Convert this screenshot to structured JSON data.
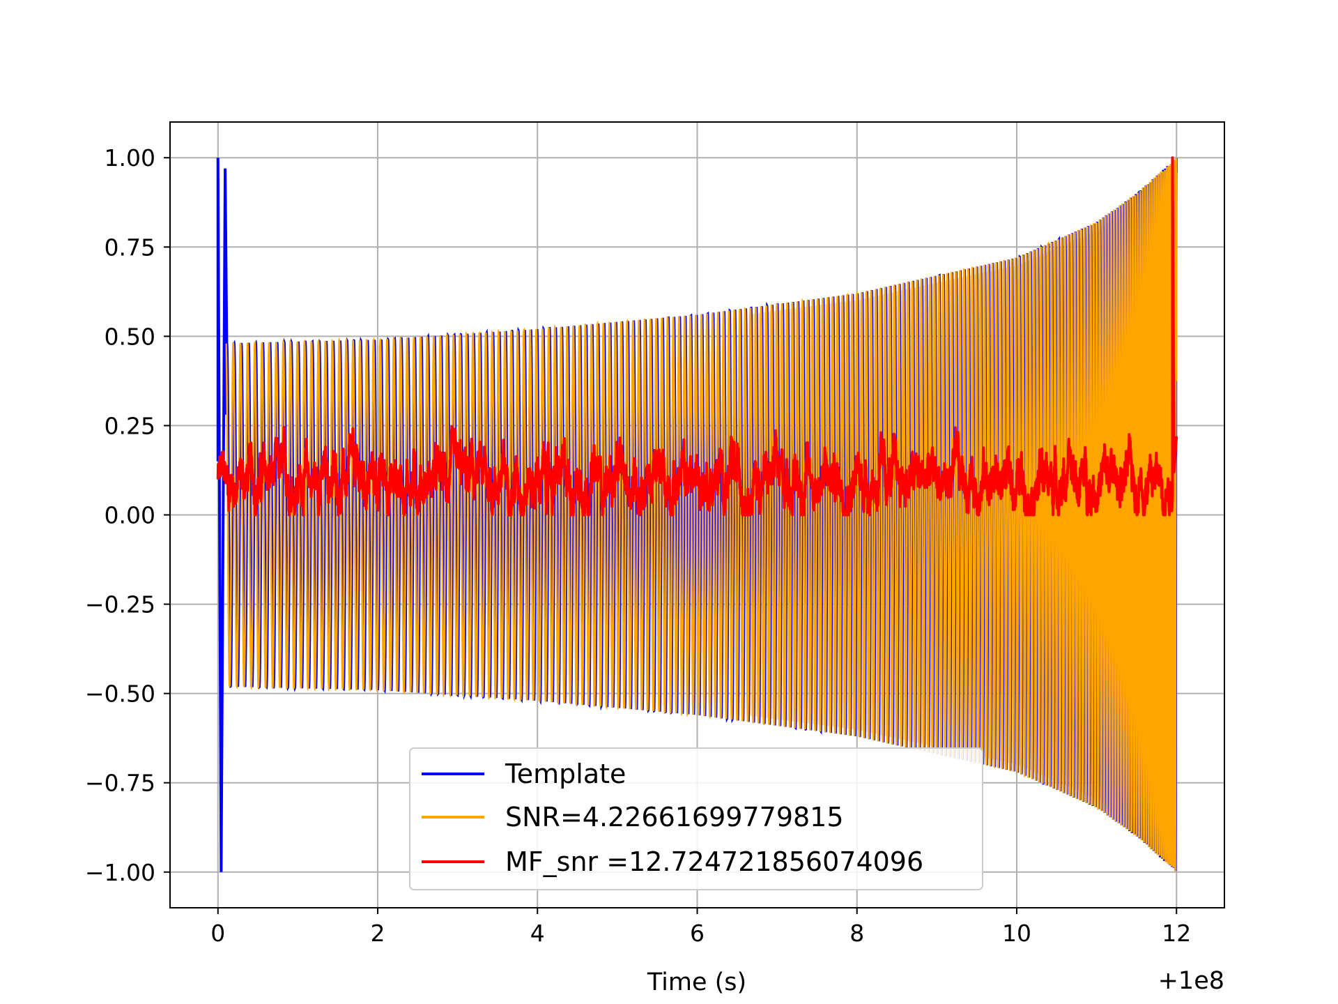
{
  "chart_data": {
    "type": "line",
    "title": "",
    "xlabel": "Time (s)",
    "ylabel": "",
    "x_offset_label": "+1e8",
    "xlim": [
      -0.6,
      12.6
    ],
    "ylim": [
      -1.1,
      1.1
    ],
    "x_ticks": [
      0,
      2,
      4,
      6,
      8,
      10,
      12
    ],
    "x_tick_labels": [
      "0",
      "2",
      "4",
      "6",
      "8",
      "10",
      "12"
    ],
    "y_ticks": [
      1.0,
      0.75,
      0.5,
      0.25,
      0.0,
      -0.25,
      -0.5,
      -0.75,
      -1.0
    ],
    "y_tick_labels": [
      "1.00",
      "0.75",
      "0.50",
      "0.25",
      "0.00",
      "−0.25",
      "−0.50",
      "−0.75",
      "−1.00"
    ],
    "grid": true,
    "legend_position": "lower-center",
    "series": [
      {
        "name": "Template",
        "color": "#0000ff",
        "description_points": {
          "start_spike_x": [
            0.0,
            0.04
          ],
          "envelope_x": [
            0.1,
            2,
            4,
            6,
            8,
            10,
            11,
            11.5,
            12.0
          ],
          "envelope_y": [
            0.48,
            0.49,
            0.52,
            0.56,
            0.62,
            0.72,
            0.82,
            0.9,
            1.0
          ]
        }
      },
      {
        "name": "SNR=4.22661699779815",
        "color": "#ffa500",
        "description_points": {
          "envelope_x": [
            0.1,
            2,
            4,
            6,
            8,
            10,
            11,
            11.5,
            12.0
          ],
          "envelope_y": [
            0.48,
            0.49,
            0.52,
            0.56,
            0.62,
            0.72,
            0.82,
            0.9,
            1.0
          ]
        }
      },
      {
        "name": "MF_snr =12.724721856074096",
        "color": "#ff0000",
        "description_points": {
          "baseline_range": [
            0.0,
            0.25
          ],
          "peak_x": 11.95,
          "peak_y": 1.0
        }
      }
    ]
  }
}
